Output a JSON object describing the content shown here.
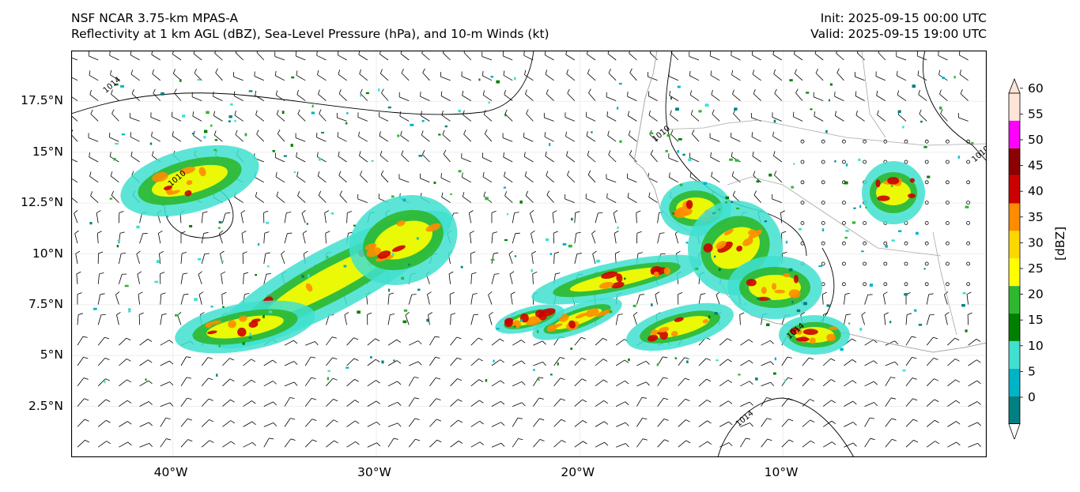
{
  "header": {
    "model_line": "NSF NCAR 3.75-km MPAS-A",
    "fields_line": "Reflectivity at 1 km AGL (dBZ), Sea-Level Pressure (hPa), and 10-m Winds (kt)",
    "init_line": "Init: 2025-09-15 00:00 UTC",
    "valid_line": "Valid: 2025-09-15 19:00 UTC"
  },
  "map": {
    "lon_range": [
      -45,
      0
    ],
    "lat_range": [
      0,
      20
    ],
    "lat_ticks": [
      {
        "value": 17.5,
        "label": "17.5°N"
      },
      {
        "value": 15,
        "label": "15°N"
      },
      {
        "value": 12.5,
        "label": "12.5°N"
      },
      {
        "value": 10,
        "label": "10°N"
      },
      {
        "value": 7.5,
        "label": "7.5°N"
      },
      {
        "value": 5,
        "label": "5°N"
      },
      {
        "value": 2.5,
        "label": "2.5°N"
      }
    ],
    "lon_ticks": [
      {
        "value": -40,
        "label": "40°W"
      },
      {
        "value": -30,
        "label": "30°W"
      },
      {
        "value": -20,
        "label": "20°W"
      },
      {
        "value": -10,
        "label": "10°W"
      }
    ],
    "isobar_labels": [
      {
        "text": "1014",
        "lon": -43.3,
        "lat": 17.9
      },
      {
        "text": "1010",
        "lon": -40.1,
        "lat": 13.3
      },
      {
        "text": "1010",
        "lon": -16.3,
        "lat": 15.5
      },
      {
        "text": "1010",
        "lon": -0.6,
        "lat": 14.5
      },
      {
        "text": "1014",
        "lon": -9.7,
        "lat": 5.8
      },
      {
        "text": "1014",
        "lon": -12.2,
        "lat": 1.5
      }
    ]
  },
  "colorbar": {
    "unit_label": "[dBZ]",
    "levels": [
      {
        "value": "0",
        "color": "#008080"
      },
      {
        "value": "5",
        "color": "#00b4c8"
      },
      {
        "value": "10",
        "color": "#40e0d0"
      },
      {
        "value": "15",
        "color": "#008000"
      },
      {
        "value": "20",
        "color": "#2eb82e"
      },
      {
        "value": "25",
        "color": "#ffff00"
      },
      {
        "value": "30",
        "color": "#ffd700"
      },
      {
        "value": "35",
        "color": "#ff8c00"
      },
      {
        "value": "40",
        "color": "#cc0000"
      },
      {
        "value": "45",
        "color": "#8b0000"
      },
      {
        "value": "50",
        "color": "#ff00ff"
      },
      {
        "value": "55",
        "color": "#ffffff"
      },
      {
        "value": "60",
        "color": "#ffffff"
      }
    ]
  }
}
